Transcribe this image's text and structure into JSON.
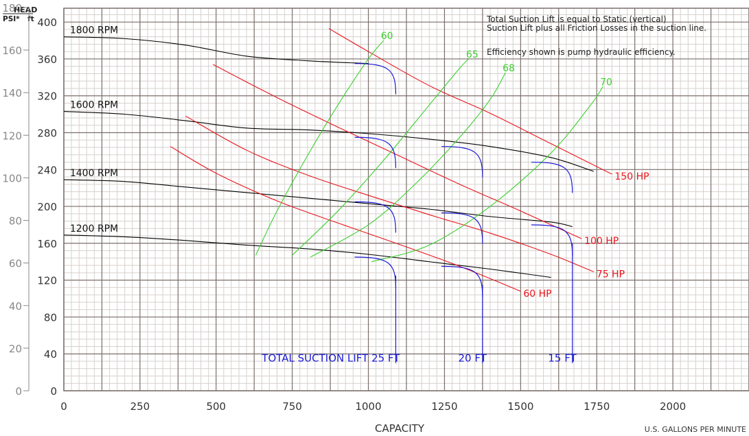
{
  "chart_data": {
    "type": "line",
    "title": "",
    "xlabel": "CAPACITY",
    "xunit": "U.S. GALLONS PER MINUTE",
    "ylabel_left_header": "HEAD",
    "ylabel_psi": "PSI*",
    "ylabel_ft": "ft",
    "xlim": [
      0,
      2250
    ],
    "ylim_ft": [
      0,
      415
    ],
    "x_ticks": [
      "0",
      "250",
      "500",
      "750",
      "1000",
      "1250",
      "1500",
      "1750",
      "2000"
    ],
    "x_tick_values": [
      0,
      250,
      500,
      750,
      1000,
      1250,
      1500,
      1750,
      2000
    ],
    "ft_ticks": [
      "0",
      "40",
      "80",
      "120",
      "160",
      "200",
      "240",
      "280",
      "320",
      "360",
      "400"
    ],
    "ft_tick_values": [
      0,
      40,
      80,
      120,
      160,
      200,
      240,
      280,
      320,
      360,
      400
    ],
    "psi_ticks": [
      "0",
      "20",
      "40",
      "60",
      "80",
      "100",
      "120",
      "140",
      "160",
      "180"
    ],
    "psi_tick_values": [
      0,
      20,
      40,
      60,
      80,
      100,
      120,
      140,
      160,
      180
    ],
    "grid": true,
    "notes": [
      "Total Suction Lift is equal to Static (vertical)",
      "Suction Lift plus all Friction Losses in the suction line.",
      "Efficiency shown is pump hydraulic efficiency."
    ],
    "colors": {
      "grid_minor": "#d6d0cd",
      "grid_major": "#7a6e6a",
      "speed": "#000000",
      "power": "#e8141b",
      "efficiency": "#3ccf2d",
      "suction": "#1a1ad6",
      "axis_text": "#333333"
    },
    "speed_curves": [
      {
        "name": "1800 RPM",
        "x": [
          0,
          200,
          400,
          600,
          800,
          1000
        ],
        "y": [
          384,
          382,
          375,
          363,
          358,
          355
        ]
      },
      {
        "name": "1600 RPM",
        "x": [
          0,
          200,
          400,
          600,
          800,
          1000,
          1200,
          1400,
          1600,
          1740
        ],
        "y": [
          303,
          300,
          293,
          285,
          283,
          279,
          273,
          265,
          253,
          238
        ]
      },
      {
        "name": "1400 RPM",
        "x": [
          0,
          200,
          400,
          600,
          800,
          1000,
          1200,
          1400,
          1600,
          1670
        ],
        "y": [
          229,
          227,
          221,
          215,
          209,
          203,
          197,
          189,
          183,
          178
        ]
      },
      {
        "name": "1200 RPM",
        "x": [
          0,
          200,
          400,
          600,
          800,
          1000,
          1200,
          1400,
          1600
        ],
        "y": [
          169,
          167,
          163,
          158,
          154,
          148,
          140,
          132,
          123
        ]
      }
    ],
    "power_curves": [
      {
        "name": "150 HP",
        "x": [
          870,
          1000,
          1200,
          1400,
          1600,
          1800
        ],
        "y": [
          393,
          368,
          331,
          301,
          268,
          235
        ]
      },
      {
        "name": "100 HP",
        "x": [
          490,
          700,
          900,
          1100,
          1300,
          1500,
          1700
        ],
        "y": [
          354,
          318,
          286,
          255,
          224,
          195,
          165
        ]
      },
      {
        "name": "75 HP",
        "x": [
          400,
          600,
          800,
          1000,
          1200,
          1400,
          1600,
          1740
        ],
        "y": [
          298,
          261,
          234,
          212,
          191,
          171,
          148,
          129
        ]
      },
      {
        "name": "60 HP",
        "x": [
          350,
          500,
          700,
          900,
          1100,
          1300,
          1500
        ],
        "y": [
          265,
          236,
          206,
          182,
          159,
          135,
          108
        ]
      }
    ],
    "efficiency_curves": [
      {
        "name": "60",
        "x": [
          630,
          700,
          800,
          900,
          1000,
          1050
        ],
        "y": [
          147,
          195,
          255,
          310,
          360,
          380
        ]
      },
      {
        "name": "65",
        "x": [
          750,
          900,
          1050,
          1200,
          1300,
          1330
        ],
        "y": [
          147,
          195,
          250,
          310,
          350,
          360
        ]
      },
      {
        "name": "68",
        "x": [
          810,
          1000,
          1150,
          1300,
          1400,
          1450
        ],
        "y": [
          145,
          180,
          223,
          275,
          316,
          345
        ]
      },
      {
        "name": "70",
        "x": [
          1010,
          1200,
          1400,
          1600,
          1730,
          1770
        ],
        "y": [
          140,
          158,
          200,
          258,
          310,
          330
        ]
      }
    ],
    "suction_curves": [
      {
        "name": "TOTAL SUCTION LIFT 25 FT",
        "vertical_x": 1090,
        "y_bottom": 30,
        "branch_heads": [
          355,
          275,
          205,
          145
        ]
      },
      {
        "name": "20 FT",
        "vertical_x": 1375,
        "y_bottom": 30,
        "branch_heads": [
          265,
          193,
          135
        ]
      },
      {
        "name": "15 FT",
        "vertical_x": 1670,
        "y_bottom": 30,
        "branch_heads": [
          248,
          180
        ]
      }
    ]
  }
}
